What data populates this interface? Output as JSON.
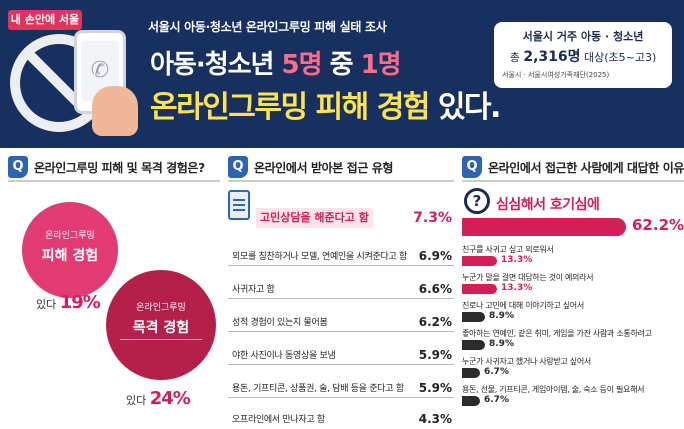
{
  "banner": {
    "badge": "내 손안에 서울",
    "subtitle": "서울시 아동·청소년 온라인그루밍 피해 실태 조사",
    "title1_pre": "아동·청소년",
    "title1_hl1": "5명",
    "title1_mid": " 중 ",
    "title1_hl2": "1명",
    "title2_main": "온라인그루밍 피해 경험",
    "title2_end": " 있다.",
    "info_line1": "서울시 거주 아동 · 청소년",
    "info_line2_pre": "총 ",
    "info_line2_num": "2,316명",
    "info_line2_post": " 대상(초5~고3)",
    "info_source": "서울시 · 서울시여성가족재단(2025)"
  },
  "sections": [
    {
      "q": "Q",
      "title": "온라인그루밍 피해 및 목격 경험은?"
    },
    {
      "q": "Q",
      "title": "온라인에서 받아본 접근 유형"
    },
    {
      "q": "Q",
      "title": "온라인에서 접근한 사람에게 대답한 이유"
    }
  ],
  "experience": {
    "victim_small": "온라인그루밍",
    "victim_big": "피해 경험",
    "victim_prefix": "있다 ",
    "victim_pct": "19%",
    "witness_small": "온라인그루밍",
    "witness_big": "목격 경험",
    "witness_prefix": "있다 ",
    "witness_pct": "24%",
    "colors": {
      "victim": "#e23a73",
      "witness": "#b51f4c"
    }
  },
  "approach_types": {
    "top": {
      "label": "고민상담을 해준다고 함",
      "value": "7.3%"
    },
    "items": [
      {
        "label": "외모를 칭찬하거나 모델, 연예인을 시켜준다고 함",
        "value": "6.9%"
      },
      {
        "label": "사귀자고 함",
        "value": "6.6%"
      },
      {
        "label": "성적 경험이 있는지 물어봄",
        "value": "6.2%"
      },
      {
        "label": "야한 사진이나 동영상을 보냄",
        "value": "5.9%"
      },
      {
        "label": "용돈, 기프티콘, 상품권, 술, 담배 등을 준다고 함",
        "value": "5.9%"
      },
      {
        "label": "오프라인에서 만나자고 함",
        "value": "4.3%"
      }
    ]
  },
  "reply_reasons": {
    "top": {
      "label": "심심해서 호기심에",
      "value": "62.2%",
      "num": 62.2
    },
    "items": [
      {
        "label": "친구를 사귀고 싶고 외로워서",
        "value": "13.3%",
        "num": 13.3,
        "style": "pink"
      },
      {
        "label": "누군가 말을 걸면 대답하는 것이 예의라서",
        "value": "13.3%",
        "num": 13.3,
        "style": "pink"
      },
      {
        "label": "진로나 고민에 대해 이야기하고 싶어서",
        "value": "8.9%",
        "num": 8.9,
        "style": "dark"
      },
      {
        "label": "좋아하는 연예인, 같은 취미, 게임을 가진 사람과 소통하려고",
        "value": "8.9%",
        "num": 8.9,
        "style": "dark"
      },
      {
        "label": "누군가 사귀자고 했거나 사랑받고 싶어서",
        "value": "6.7%",
        "num": 6.7,
        "style": "dark"
      },
      {
        "label": "용돈, 선물, 기프티콘, 게임아이템, 술, 숙소 등이 필요해서",
        "value": "6.7%",
        "num": 6.7,
        "style": "dark"
      }
    ]
  },
  "icons": [
    "no-sign-icon",
    "phone-icon",
    "hand-icon",
    "document-icon",
    "question-bubble-icon"
  ]
}
